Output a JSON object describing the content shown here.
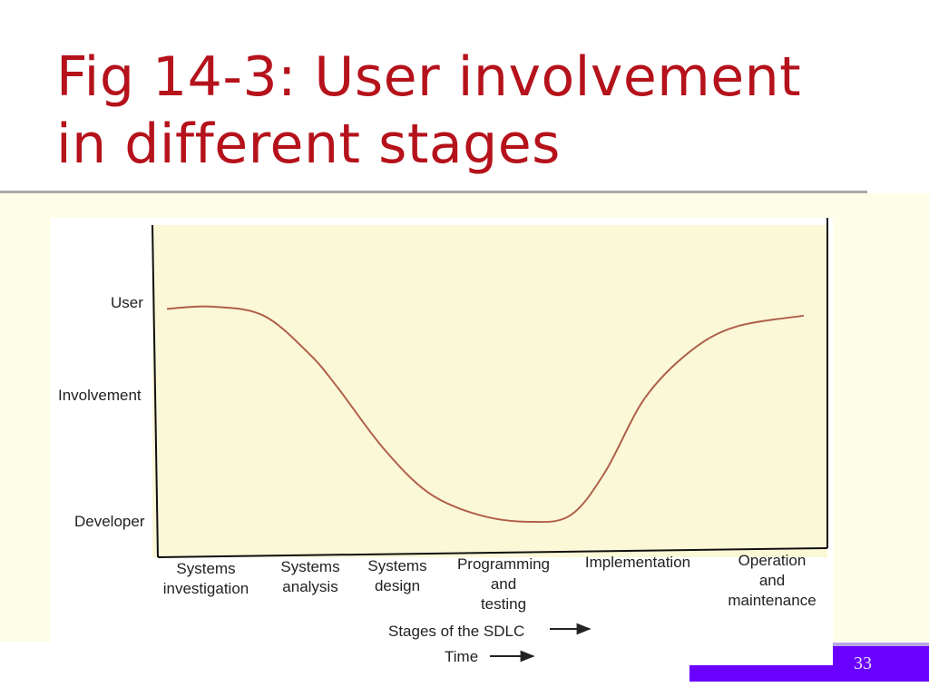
{
  "slide": {
    "title_line1": "Fig 14-3: User involvement",
    "title_line2": "in different stages",
    "page_number": "33"
  },
  "colors": {
    "title": "#b5121b",
    "plot_background": "#fbf8d8",
    "curve": "#b0604a",
    "footer_accent": "#6a00ff"
  },
  "chart_data": {
    "type": "line",
    "ylabel_top": "User",
    "ylabel_mid": "Involvement",
    "ylabel_bottom": "Developer",
    "x_stages": [
      [
        "Systems",
        "investigation"
      ],
      [
        "Systems",
        "analysis"
      ],
      [
        "Systems",
        "design"
      ],
      [
        "Programming",
        "and",
        "testing"
      ],
      [
        "Implementation"
      ],
      [
        "Operation",
        "and",
        "maintenance"
      ]
    ],
    "arrow_labels": [
      "Stages of the SDLC",
      "Time"
    ],
    "ylim": [
      0,
      1
    ],
    "grid": false,
    "series": [
      {
        "x": [
          0,
          0.4,
          0.85,
          1.25,
          1.5,
          1.9,
          2.3,
          2.75,
          3.2,
          3.55,
          3.85,
          4.2,
          4.6,
          5.0,
          5.6
        ],
        "values": [
          0.95,
          0.96,
          0.92,
          0.75,
          0.6,
          0.33,
          0.13,
          0.03,
          0.0,
          0.03,
          0.22,
          0.55,
          0.76,
          0.87,
          0.92
        ]
      }
    ]
  }
}
